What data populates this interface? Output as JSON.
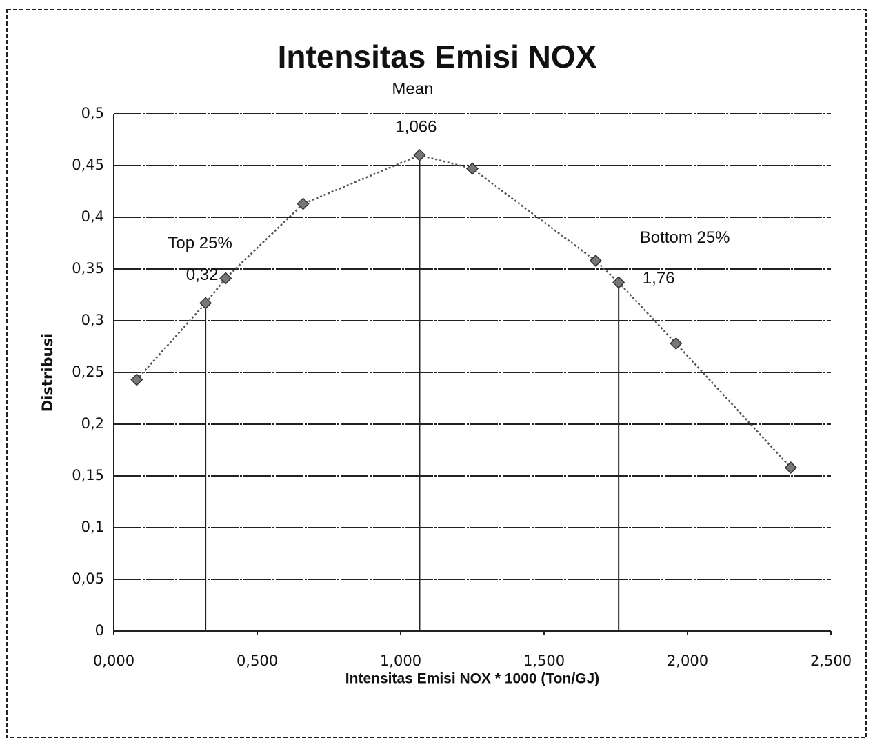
{
  "chart_data": {
    "type": "line",
    "title": "Intensitas Emisi NOX",
    "x_label": "Intensitas Emisi NOX * 1000 (Ton/GJ)",
    "y_label": "Distribusi",
    "x": [
      0.08,
      0.32,
      0.39,
      0.66,
      1.066,
      1.25,
      1.68,
      1.76,
      1.96,
      2.36
    ],
    "series": [
      {
        "color": "#555555",
        "values": [
          0.243,
          0.317,
          0.341,
          0.413,
          0.46,
          0.447,
          0.358,
          0.337,
          0.278,
          0.158
        ]
      }
    ],
    "xlim": [
      0,
      2.5
    ],
    "xticks": [
      {
        "value": 0,
        "label": "0,000"
      },
      {
        "value": 0.5,
        "label": "0,500"
      },
      {
        "value": 1,
        "label": "1,000"
      },
      {
        "value": 1.5,
        "label": "1,500"
      },
      {
        "value": 2,
        "label": "2,000"
      },
      {
        "value": 2.5,
        "label": "2,500"
      }
    ],
    "ylim": [
      0,
      0.5
    ],
    "yticks": [
      0,
      {
        "value": 0.05,
        "label": "0,05"
      },
      {
        "value": 0.1,
        "label": "0,1"
      },
      {
        "value": 0.15,
        "label": "0,15"
      },
      {
        "value": 0.2,
        "label": "0,2"
      },
      {
        "value": 0.25,
        "label": "0,25"
      },
      {
        "value": 0.3,
        "label": "0,3"
      },
      {
        "value": 0.35,
        "label": "0,35"
      },
      {
        "value": 0.4,
        "label": "0,4"
      },
      {
        "value": 0.45,
        "label": "0,45"
      },
      {
        "value": 0.5,
        "label": "0,5"
      }
    ],
    "grid": true,
    "reference_lines": [
      {
        "label": "Top 25%",
        "x": 0.32,
        "x_label": "0,32",
        "y": 0.317
      },
      {
        "label": "Mean",
        "x": 1.066,
        "x_label": "1,066",
        "y": 0.46
      },
      {
        "label": "Bottom 25%",
        "x": 1.76,
        "x_label": "1,76",
        "y": 0.337
      }
    ]
  }
}
